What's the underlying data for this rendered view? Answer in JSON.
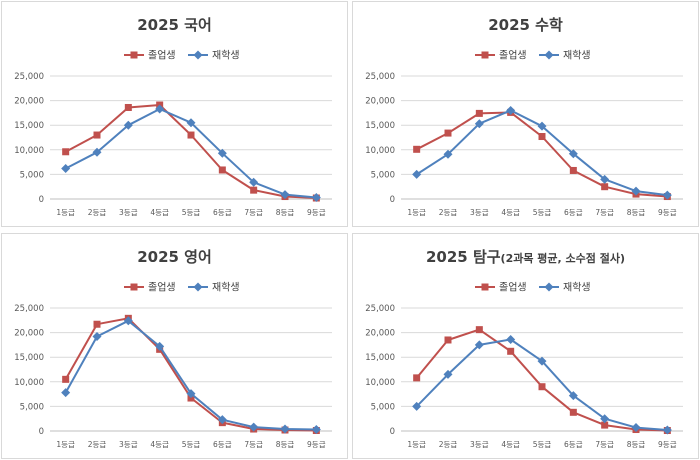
{
  "colors": {
    "graduates": "#c0504d",
    "current": "#4f81bd"
  },
  "charts": [
    {
      "title_main": "2025 국어",
      "title_sub": "",
      "type": "line",
      "categories": [
        "1등급",
        "2등급",
        "3등급",
        "4등급",
        "5등급",
        "6등급",
        "7등급",
        "8등급",
        "9등급"
      ],
      "ylim": [
        0,
        25000
      ],
      "yticks": [
        "0",
        "5,000",
        "10,000",
        "15,000",
        "20,000",
        "25,000"
      ],
      "series": [
        {
          "name": "졸업생",
          "marker": "square",
          "values": [
            9600,
            13000,
            18600,
            19100,
            13000,
            5900,
            1800,
            500,
            200
          ]
        },
        {
          "name": "재학생",
          "marker": "diamond",
          "values": [
            6200,
            9500,
            15000,
            18300,
            15500,
            9300,
            3400,
            900,
            300
          ]
        }
      ]
    },
    {
      "title_main": "2025 수학",
      "title_sub": "",
      "type": "line",
      "categories": [
        "1등급",
        "2등급",
        "3등급",
        "4등급",
        "5등급",
        "6등급",
        "7등급",
        "8등급",
        "9등급"
      ],
      "ylim": [
        0,
        25000
      ],
      "yticks": [
        "0",
        "5,000",
        "10,000",
        "15,000",
        "20,000",
        "25,000"
      ],
      "series": [
        {
          "name": "졸업생",
          "marker": "square",
          "values": [
            10100,
            13400,
            17400,
            17600,
            12700,
            5800,
            2500,
            1000,
            500
          ]
        },
        {
          "name": "재학생",
          "marker": "diamond",
          "values": [
            5000,
            9100,
            15300,
            18000,
            14800,
            9200,
            4000,
            1600,
            800
          ]
        }
      ]
    },
    {
      "title_main": "2025 영어",
      "title_sub": "",
      "type": "line",
      "categories": [
        "1등급",
        "2등급",
        "3등급",
        "4등급",
        "5등급",
        "6등급",
        "7등급",
        "8등급",
        "9등급"
      ],
      "ylim": [
        0,
        25000
      ],
      "yticks": [
        "0",
        "5,000",
        "10,000",
        "15,000",
        "20,000",
        "25,000"
      ],
      "series": [
        {
          "name": "졸업생",
          "marker": "square",
          "values": [
            10500,
            21700,
            22900,
            16600,
            6700,
            1700,
            400,
            200,
            100
          ]
        },
        {
          "name": "재학생",
          "marker": "diamond",
          "values": [
            7800,
            19200,
            22400,
            17200,
            7600,
            2300,
            800,
            400,
            300
          ]
        }
      ]
    },
    {
      "title_main": "2025 탐구",
      "title_sub": "(2과목 평균, 소수점 절사)",
      "type": "line",
      "categories": [
        "1등급",
        "2등급",
        "3등급",
        "4등급",
        "5등급",
        "6등급",
        "7등급",
        "8등급",
        "9등급"
      ],
      "ylim": [
        0,
        25000
      ],
      "yticks": [
        "0",
        "5,000",
        "10,000",
        "15,000",
        "20,000",
        "25,000"
      ],
      "series": [
        {
          "name": "졸업생",
          "marker": "square",
          "values": [
            10800,
            18500,
            20600,
            16200,
            9000,
            3800,
            1200,
            300,
            100
          ]
        },
        {
          "name": "재학생",
          "marker": "diamond",
          "values": [
            5000,
            11500,
            17500,
            18600,
            14200,
            7200,
            2500,
            700,
            200
          ]
        }
      ]
    }
  ],
  "chart_data": [
    {
      "type": "line",
      "title": "2025 국어",
      "categories": [
        "1등급",
        "2등급",
        "3등급",
        "4등급",
        "5등급",
        "6등급",
        "7등급",
        "8등급",
        "9등급"
      ],
      "ylim": [
        0,
        25000
      ],
      "legend": "top",
      "series": [
        {
          "name": "졸업생",
          "values": [
            9600,
            13000,
            18600,
            19100,
            13000,
            5900,
            1800,
            500,
            200
          ]
        },
        {
          "name": "재학생",
          "values": [
            6200,
            9500,
            15000,
            18300,
            15500,
            9300,
            3400,
            900,
            300
          ]
        }
      ]
    },
    {
      "type": "line",
      "title": "2025 수학",
      "categories": [
        "1등급",
        "2등급",
        "3등급",
        "4등급",
        "5등급",
        "6등급",
        "7등급",
        "8등급",
        "9등급"
      ],
      "ylim": [
        0,
        25000
      ],
      "legend": "top",
      "series": [
        {
          "name": "졸업생",
          "values": [
            10100,
            13400,
            17400,
            17600,
            12700,
            5800,
            2500,
            1000,
            500
          ]
        },
        {
          "name": "재학생",
          "values": [
            5000,
            9100,
            15300,
            18000,
            14800,
            9200,
            4000,
            1600,
            800
          ]
        }
      ]
    },
    {
      "type": "line",
      "title": "2025 영어",
      "categories": [
        "1등급",
        "2등급",
        "3등급",
        "4등급",
        "5등급",
        "6등급",
        "7등급",
        "8등급",
        "9등급"
      ],
      "ylim": [
        0,
        25000
      ],
      "legend": "top",
      "series": [
        {
          "name": "졸업생",
          "values": [
            10500,
            21700,
            22900,
            16600,
            6700,
            1700,
            400,
            200,
            100
          ]
        },
        {
          "name": "재학생",
          "values": [
            7800,
            19200,
            22400,
            17200,
            7600,
            2300,
            800,
            400,
            300
          ]
        }
      ]
    },
    {
      "type": "line",
      "title": "2025 탐구(2과목 평균, 소수점 절사)",
      "categories": [
        "1등급",
        "2등급",
        "3등급",
        "4등급",
        "5등급",
        "6등급",
        "7등급",
        "8등급",
        "9등급"
      ],
      "ylim": [
        0,
        25000
      ],
      "legend": "top",
      "series": [
        {
          "name": "졸업생",
          "values": [
            10800,
            18500,
            20600,
            16200,
            9000,
            3800,
            1200,
            300,
            100
          ]
        },
        {
          "name": "재학생",
          "values": [
            5000,
            11500,
            17500,
            18600,
            14200,
            7200,
            2500,
            700,
            200
          ]
        }
      ]
    }
  ]
}
